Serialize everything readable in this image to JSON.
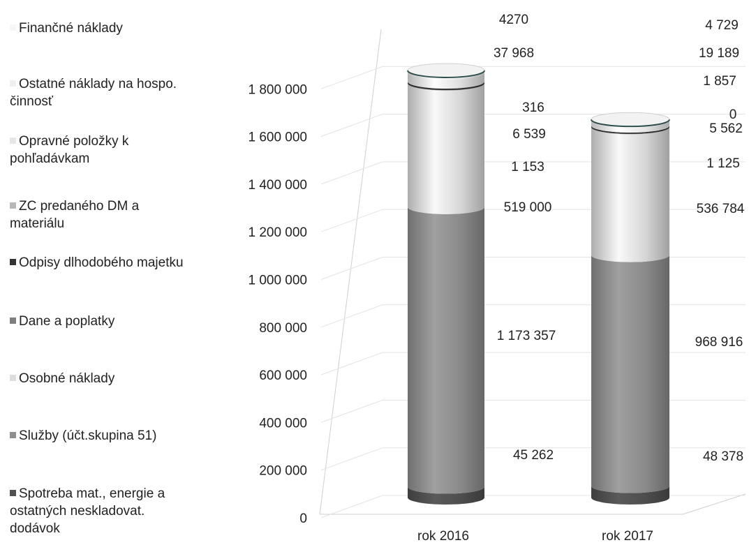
{
  "chart_data": {
    "type": "bar",
    "style": "3d-cylinder-stacked",
    "categories": [
      "rok 2016",
      "rok 2017"
    ],
    "ylim": [
      0,
      1800000
    ],
    "y_ticks": [
      "0",
      "200 000",
      "400 000",
      "600 000",
      "800 000",
      "1 000 000",
      "1 200 000",
      "1 400 000",
      "1 600 000",
      "1 800 000"
    ],
    "grid": true,
    "legend_position": "left",
    "series": [
      {
        "name": "Spotreba mat., energie a ostatných neskladovat. dodávok",
        "values": [
          45262,
          48378
        ],
        "labels": [
          "45 262",
          "48 378"
        ],
        "color": "#505050"
      },
      {
        "name": "Služby (účt.skupina 51)",
        "values": [
          1173357,
          968916
        ],
        "labels": [
          "1 173 357",
          "968 916"
        ],
        "color": "#8f8f8f"
      },
      {
        "name": "Osobné náklady",
        "values": [
          519000,
          536784
        ],
        "labels": [
          "519 000",
          "536 784"
        ],
        "color": "#dedede"
      },
      {
        "name": "Dane a poplatky",
        "values": [
          1153,
          1125
        ],
        "labels": [
          "1 153",
          "1 125"
        ],
        "color": "#7f7f7f"
      },
      {
        "name": "Odpisy dlhodobého majetku",
        "values": [
          6539,
          5562
        ],
        "labels": [
          "6 539",
          "5 562"
        ],
        "color": "#333333"
      },
      {
        "name": "ZC predaného DM a materiálu",
        "values": [
          316,
          0
        ],
        "labels": [
          "316",
          "0"
        ],
        "color": "#b8b8b8"
      },
      {
        "name": "Opravné položky k pohľadávkam",
        "values": [
          37968,
          1857
        ],
        "labels": [
          "37 968",
          "1 857"
        ],
        "color": "#e6e6e6"
      },
      {
        "name": "Ostatné náklady na hospo. činnosť",
        "values": [
          4270,
          19189
        ],
        "labels": [
          "4270",
          "19 189"
        ],
        "color": "#efefef"
      },
      {
        "name": "Finančné náklady",
        "values": [
          4270,
          4729
        ],
        "labels": [
          "",
          "4 729"
        ],
        "color": "#f6f6f6"
      }
    ],
    "legend": [
      {
        "lines": [
          "Finančné náklady"
        ],
        "color": "#f6f6f6"
      },
      {
        "lines": [
          "Ostatné náklady na hospo.",
          "činnosť"
        ],
        "color": "#efefef"
      },
      {
        "lines": [
          "Opravné položky k",
          "pohľadávkam"
        ],
        "color": "#e6e6e6"
      },
      {
        "lines": [
          "ZC predaného DM a",
          "materiálu"
        ],
        "color": "#b8b8b8"
      },
      {
        "lines": [
          "Odpisy dlhodobého majetku"
        ],
        "color": "#333333"
      },
      {
        "lines": [
          "Dane a poplatky"
        ],
        "color": "#7f7f7f"
      },
      {
        "lines": [
          "Osobné náklady"
        ],
        "color": "#dedede"
      },
      {
        "lines": [
          "Služby (účt.skupina 51)"
        ],
        "color": "#8f8f8f"
      },
      {
        "lines": [
          "Spotreba mat., energie a",
          "ostatných neskladovat.",
          "dodávok"
        ],
        "color": "#505050"
      }
    ],
    "data_labels": [
      {
        "text": "4270",
        "cat": 0
      },
      {
        "text": "37 968",
        "cat": 0
      },
      {
        "text": "316",
        "cat": 0
      },
      {
        "text": "6 539",
        "cat": 0
      },
      {
        "text": "1 153",
        "cat": 0
      },
      {
        "text": "519 000",
        "cat": 0
      },
      {
        "text": "1 173 357",
        "cat": 0
      },
      {
        "text": "45 262",
        "cat": 0
      },
      {
        "text": "4 729",
        "cat": 1
      },
      {
        "text": "19 189",
        "cat": 1
      },
      {
        "text": "1 857",
        "cat": 1
      },
      {
        "text": "0",
        "cat": 1
      },
      {
        "text": "5 562",
        "cat": 1
      },
      {
        "text": "1 125",
        "cat": 1
      },
      {
        "text": "536 784",
        "cat": 1
      },
      {
        "text": "968 916",
        "cat": 1
      },
      {
        "text": "48 378",
        "cat": 1
      }
    ]
  }
}
